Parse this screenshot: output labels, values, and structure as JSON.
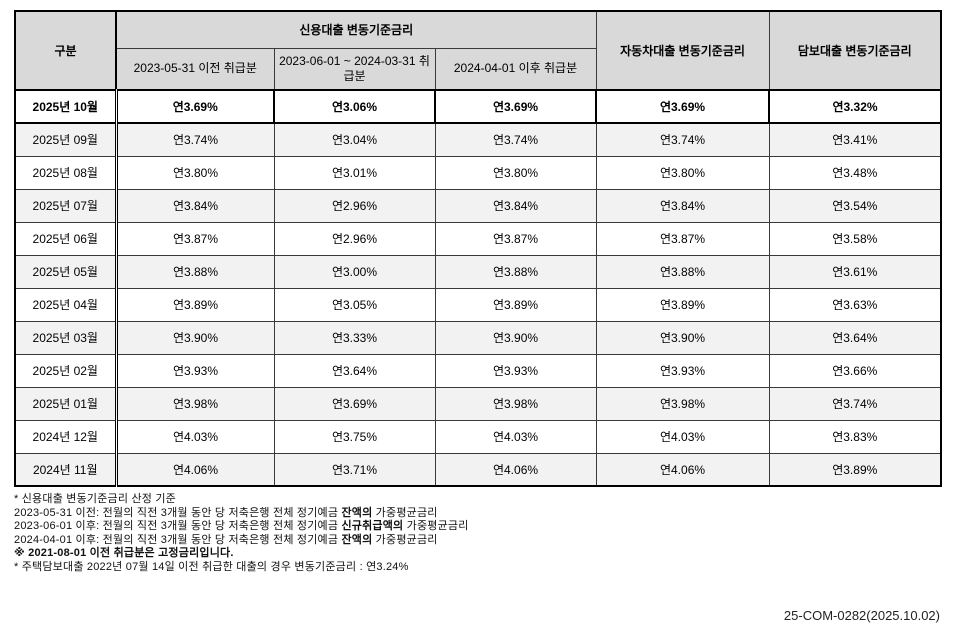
{
  "page": {
    "doc_ref": "25-COM-0282(2025.10.02)"
  },
  "colors": {
    "header_bg": "#d9d9d9",
    "alt_row_bg": "#f2f2f2",
    "grid_border": "#3a3a3a",
    "emphasis_border": "#000000"
  },
  "table": {
    "col_group_label": "구분",
    "credit_header": "신용대출 변동기준금리",
    "credit_subheaders": [
      "2023-05-31 이전 취급분",
      "2023-06-01 ~ 2024-03-31 취급분",
      "2024-04-01 이후 취급분"
    ],
    "auto_header": "자동차대출 변동기준금리",
    "secured_header": "담보대출 변동기준금리",
    "rows": [
      {
        "month": "2025년 10월",
        "values": [
          "연3.69%",
          "연3.06%",
          "연3.69%",
          "연3.69%",
          "연3.32%"
        ],
        "emphasis": true
      },
      {
        "month": "2025년 09월",
        "values": [
          "연3.74%",
          "연3.04%",
          "연3.74%",
          "연3.74%",
          "연3.41%"
        ],
        "emphasis": false
      },
      {
        "month": "2025년 08월",
        "values": [
          "연3.80%",
          "연3.01%",
          "연3.80%",
          "연3.80%",
          "연3.48%"
        ],
        "emphasis": false
      },
      {
        "month": "2025년 07월",
        "values": [
          "연3.84%",
          "연2.96%",
          "연3.84%",
          "연3.84%",
          "연3.54%"
        ],
        "emphasis": false
      },
      {
        "month": "2025년 06월",
        "values": [
          "연3.87%",
          "연2.96%",
          "연3.87%",
          "연3.87%",
          "연3.58%"
        ],
        "emphasis": false
      },
      {
        "month": "2025년 05월",
        "values": [
          "연3.88%",
          "연3.00%",
          "연3.88%",
          "연3.88%",
          "연3.61%"
        ],
        "emphasis": false
      },
      {
        "month": "2025년 04월",
        "values": [
          "연3.89%",
          "연3.05%",
          "연3.89%",
          "연3.89%",
          "연3.63%"
        ],
        "emphasis": false
      },
      {
        "month": "2025년 03월",
        "values": [
          "연3.90%",
          "연3.33%",
          "연3.90%",
          "연3.90%",
          "연3.64%"
        ],
        "emphasis": false
      },
      {
        "month": "2025년 02월",
        "values": [
          "연3.93%",
          "연3.64%",
          "연3.93%",
          "연3.93%",
          "연3.66%"
        ],
        "emphasis": false
      },
      {
        "month": "2025년 01월",
        "values": [
          "연3.98%",
          "연3.69%",
          "연3.98%",
          "연3.98%",
          "연3.74%"
        ],
        "emphasis": false
      },
      {
        "month": "2024년 12월",
        "values": [
          "연4.03%",
          "연3.75%",
          "연4.03%",
          "연4.03%",
          "연3.83%"
        ],
        "emphasis": false
      },
      {
        "month": "2024년 11월",
        "values": [
          "연4.06%",
          "연3.71%",
          "연4.06%",
          "연4.06%",
          "연3.89%"
        ],
        "emphasis": false
      }
    ]
  },
  "footnotes": [
    {
      "segments": [
        {
          "text": "* 신용대출 변동기준금리 산정 기준",
          "bold": false
        }
      ]
    },
    {
      "segments": [
        {
          "text": "2023-05-31 이전: 전월의 직전 3개월 동안 당 저축은행 전체 정기예금 ",
          "bold": false
        },
        {
          "text": "잔액의",
          "bold": true
        },
        {
          "text": " 가중평균금리",
          "bold": false
        }
      ]
    },
    {
      "segments": [
        {
          "text": "2023-06-01 이후: 전월의 직전 3개월 동안 당 저축은행 전체 정기예금 ",
          "bold": false
        },
        {
          "text": "신규취급액의",
          "bold": true
        },
        {
          "text": " 가중평균금리",
          "bold": false
        }
      ]
    },
    {
      "segments": [
        {
          "text": "2024-04-01 이후: 전월의 직전 3개월 동안 당 저축은행 전체 정기예금 ",
          "bold": false
        },
        {
          "text": "잔액의",
          "bold": true
        },
        {
          "text": " 가중평균금리",
          "bold": false
        }
      ]
    },
    {
      "segments": [
        {
          "text": "※ 2021-08-01 이전 취급분은 고정금리입니다.",
          "bold": true
        }
      ]
    },
    {
      "segments": [
        {
          "text": "* 주택담보대출 2022년 07월 14일 이전 취급한 대출의 경우 변동기준금리 : 연3.24%",
          "bold": false
        }
      ]
    }
  ]
}
